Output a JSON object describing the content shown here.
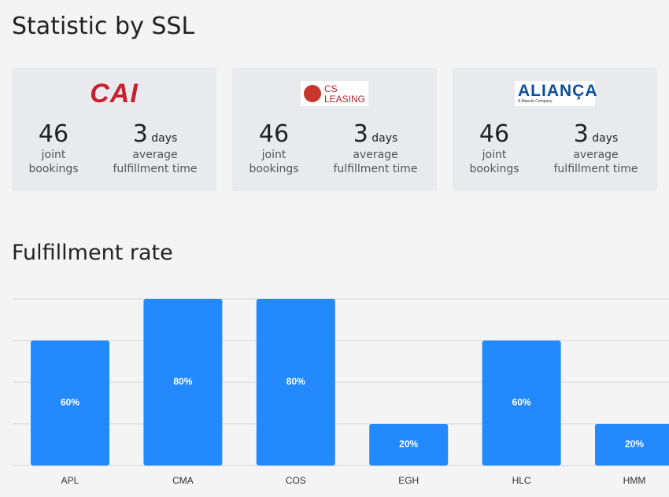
{
  "title": "Statistic by SSL",
  "cards": [
    {
      "logo": [
        "CAI"
      ],
      "bookings": 46,
      "bookings_label": "joint bookings",
      "time": 3,
      "time_unit": "days",
      "time_label": "average fulfillment time"
    },
    {
      "logo": [
        "CS",
        "LEASING"
      ],
      "bookings": 46,
      "bookings_label": "joint bookings",
      "time": 3,
      "time_unit": "days",
      "time_label": "average fulfillment time"
    },
    {
      "logo": [
        "ALIANÇA",
        "A Maersk Company"
      ],
      "bookings": 46,
      "bookings_label": "joint bookings",
      "time": 3,
      "time_unit": "days",
      "time_label": "average fulfillment time"
    }
  ],
  "chart_data": {
    "type": "bar",
    "title": "Fulfillment rate",
    "categories": [
      "APL",
      "CMA",
      "COS",
      "EGH",
      "HLC",
      "HMM"
    ],
    "values": [
      60,
      80,
      80,
      20,
      60,
      20
    ],
    "value_labels": [
      "60%",
      "80%",
      "80%",
      "20%",
      "60%",
      "20%"
    ],
    "color": "#2389ff",
    "ylim": [
      0,
      80
    ],
    "yticks": [
      0,
      20,
      40,
      60,
      80
    ],
    "grid": true
  }
}
